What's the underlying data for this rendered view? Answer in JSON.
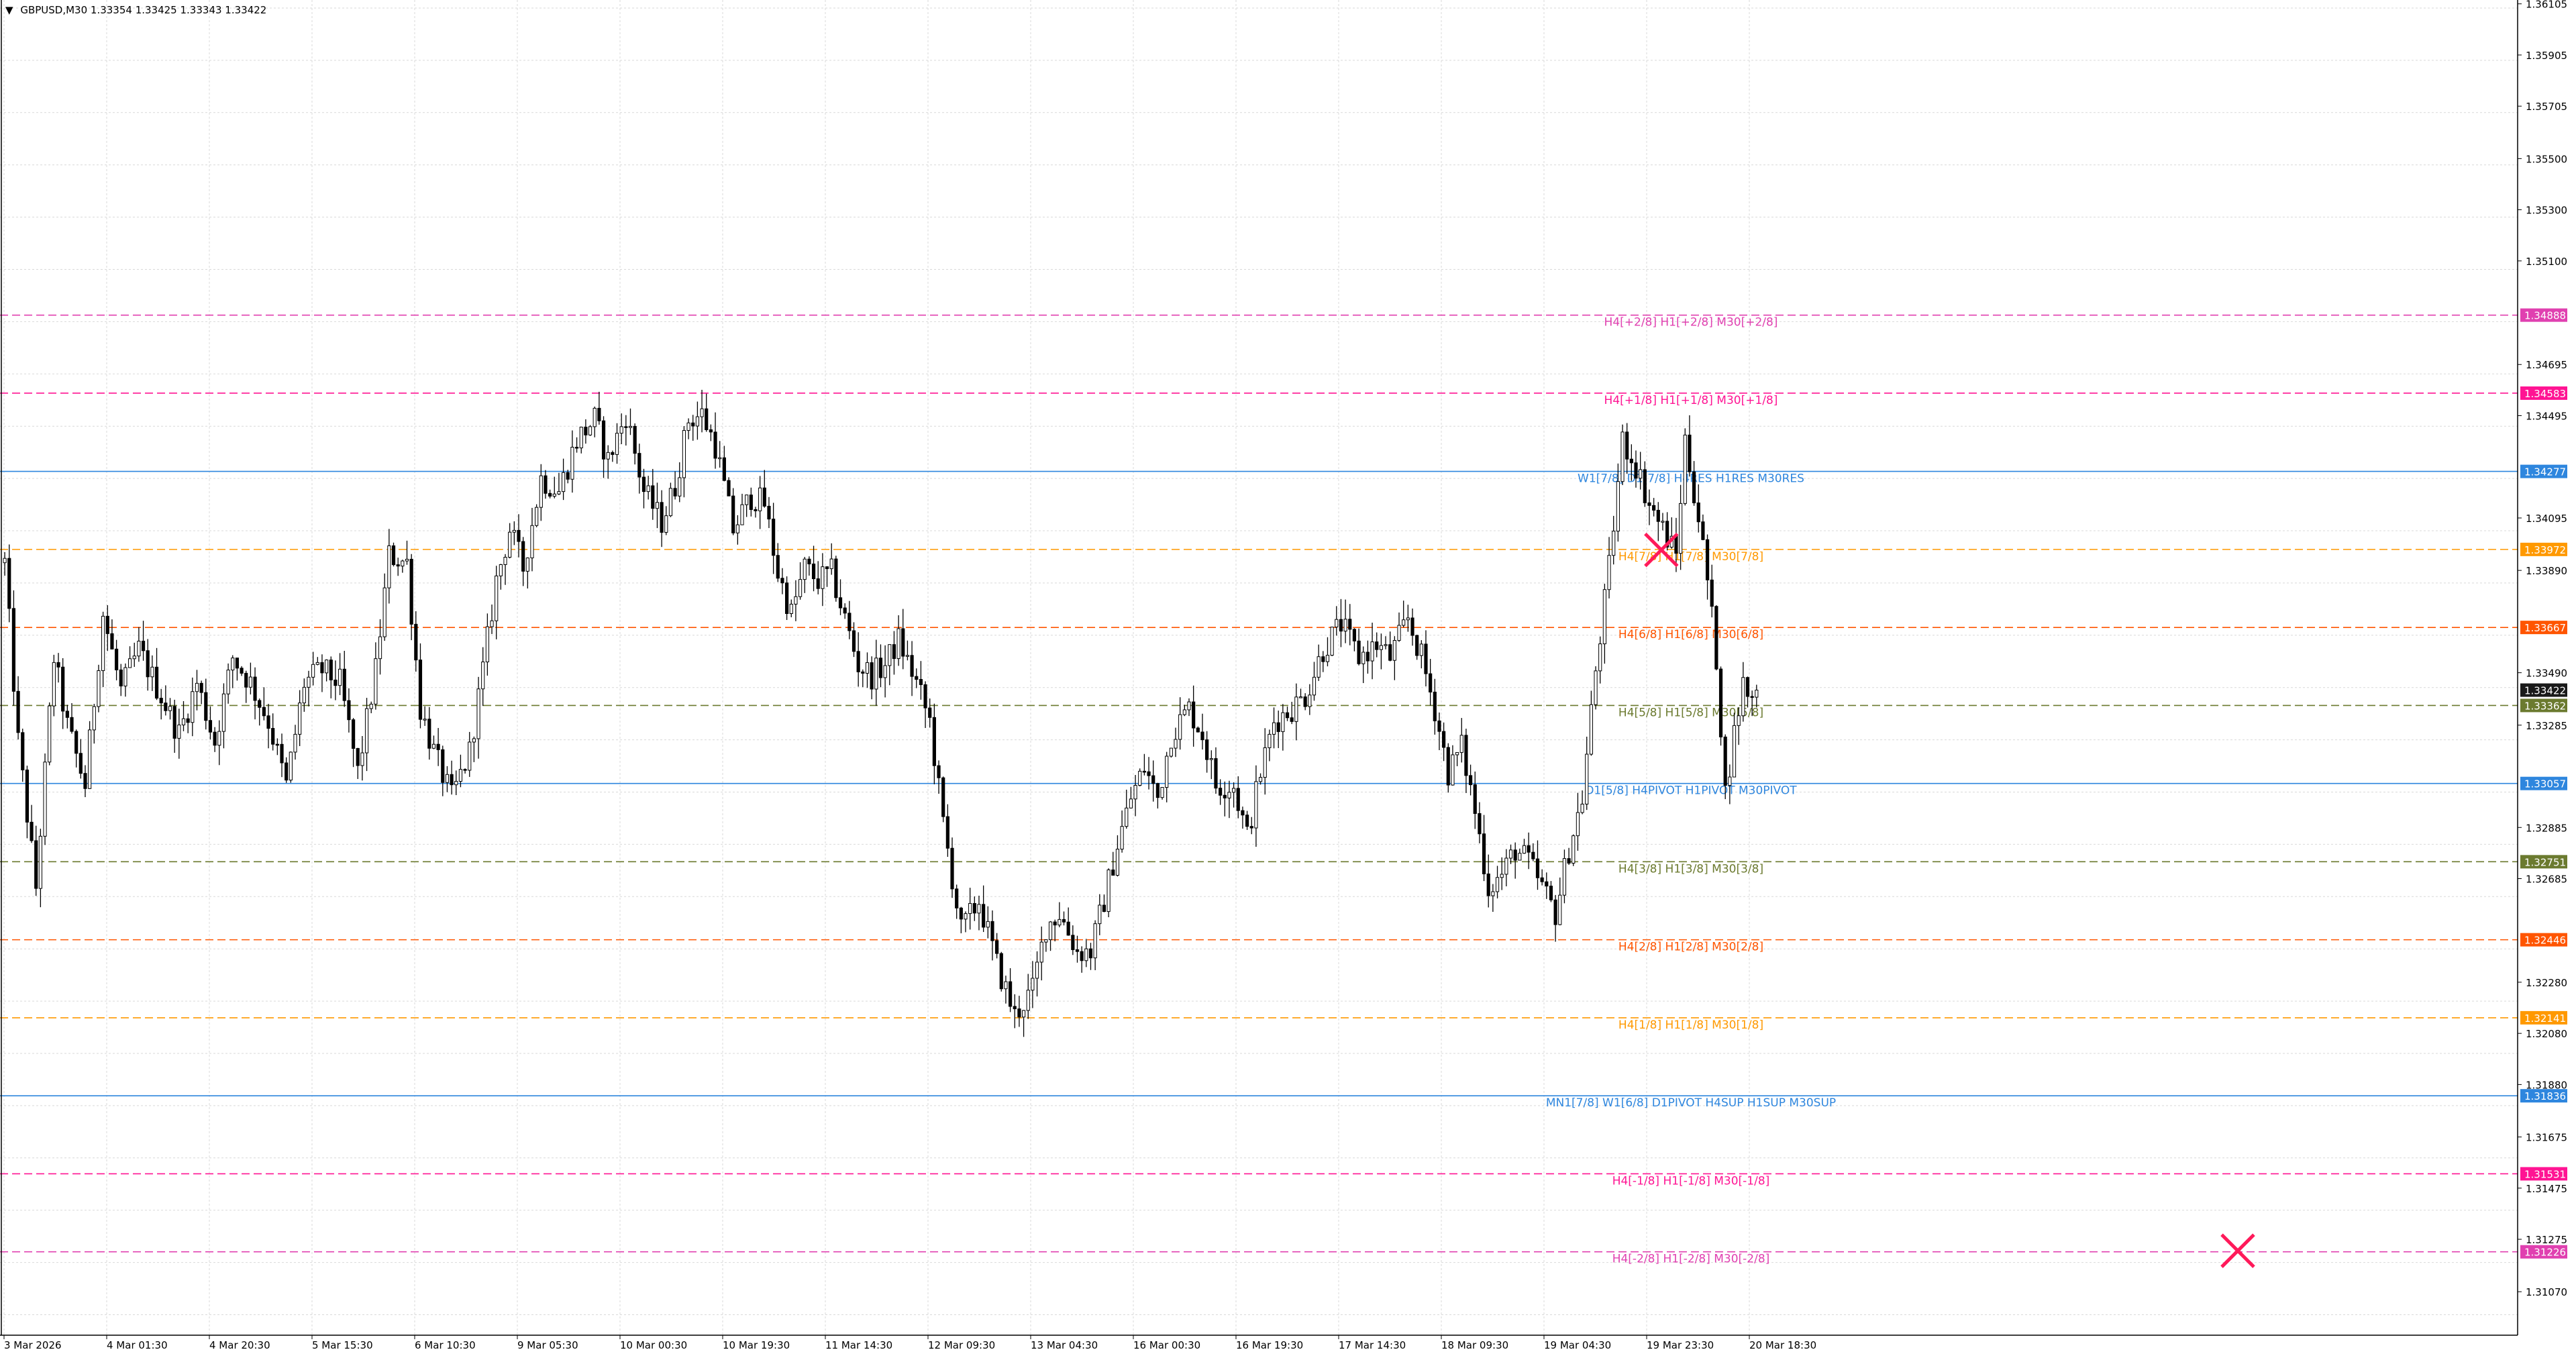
{
  "header": {
    "arrow": "▼",
    "symbol_line": "GBPUSD,M30   1.33354  1.33425  1.33343  1.33422"
  },
  "colors": {
    "background": "#ffffff",
    "grid": "#d9d9d9",
    "candle": "#000000",
    "pink": "#e040b0",
    "magenta": "#ff1493",
    "blue": "#2e86de",
    "orange": "#ff9900",
    "orange_red": "#ff5500",
    "olive": "#6b7a2f",
    "dark": "#1a1a1a",
    "cross": "#ff1a5a"
  },
  "chart_data": {
    "type": "candlestick",
    "title": "GBPUSD,M30",
    "ylim": [
      1.309,
      1.3612
    ],
    "price_axis_ticks": [
      "1.36105",
      "1.35905",
      "1.35705",
      "1.35500",
      "1.35300",
      "1.35100",
      "1.34888",
      "1.34695",
      "1.34583",
      "1.34495",
      "1.34277",
      "1.34095",
      "1.33972",
      "1.33890",
      "1.33667",
      "1.33490",
      "1.33422",
      "1.33362",
      "1.33285",
      "1.33057",
      "1.32885",
      "1.32751",
      "1.32685",
      "1.32446",
      "1.32280",
      "1.32141",
      "1.32080",
      "1.31880",
      "1.31836",
      "1.31675",
      "1.31531",
      "1.31475",
      "1.31275",
      "1.31226",
      "1.31070"
    ],
    "time_axis_labels": [
      "3 Mar 2026",
      "4 Mar 01:30",
      "4 Mar 20:30",
      "5 Mar 15:30",
      "6 Mar 10:30",
      "9 Mar 05:30",
      "10 Mar 00:30",
      "10 Mar 19:30",
      "11 Mar 14:30",
      "12 Mar 09:30",
      "13 Mar 04:30",
      "16 Mar 00:30",
      "16 Mar 19:30",
      "17 Mar 14:30",
      "18 Mar 09:30",
      "19 Mar 04:30",
      "19 Mar 23:30",
      "20 Mar 18:30"
    ],
    "bar_count": 420,
    "close_path": [
      [
        0,
        1.3392
      ],
      [
        6,
        1.3322
      ],
      [
        14,
        1.3265
      ],
      [
        22,
        1.3355
      ],
      [
        28,
        1.3328
      ],
      [
        36,
        1.3305
      ],
      [
        44,
        1.3372
      ],
      [
        52,
        1.3342
      ],
      [
        60,
        1.3358
      ],
      [
        70,
        1.334
      ],
      [
        78,
        1.3325
      ],
      [
        86,
        1.3345
      ],
      [
        94,
        1.3322
      ],
      [
        102,
        1.3355
      ],
      [
        110,
        1.3345
      ],
      [
        118,
        1.333
      ],
      [
        126,
        1.3305
      ],
      [
        134,
        1.3345
      ],
      [
        142,
        1.335
      ],
      [
        150,
        1.3345
      ],
      [
        158,
        1.331
      ],
      [
        166,
        1.335
      ],
      [
        172,
        1.3395
      ],
      [
        180,
        1.3392
      ],
      [
        186,
        1.3335
      ],
      [
        192,
        1.3318
      ],
      [
        200,
        1.33
      ],
      [
        208,
        1.3318
      ],
      [
        214,
        1.335
      ],
      [
        220,
        1.3385
      ],
      [
        226,
        1.3405
      ],
      [
        232,
        1.339
      ],
      [
        240,
        1.3425
      ],
      [
        248,
        1.342
      ],
      [
        256,
        1.344
      ],
      [
        264,
        1.3448
      ],
      [
        270,
        1.3432
      ],
      [
        278,
        1.345
      ],
      [
        286,
        1.342
      ],
      [
        294,
        1.3408
      ],
      [
        300,
        1.3422
      ],
      [
        306,
        1.3448
      ],
      [
        312,
        1.345
      ],
      [
        318,
        1.3438
      ],
      [
        326,
        1.3405
      ],
      [
        334,
        1.3418
      ],
      [
        340,
        1.3415
      ],
      [
        346,
        1.3388
      ],
      [
        352,
        1.3372
      ],
      [
        358,
        1.339
      ],
      [
        364,
        1.3385
      ],
      [
        370,
        1.3388
      ],
      [
        376,
        1.337
      ],
      [
        382,
        1.3352
      ],
      [
        388,
        1.3348
      ],
      [
        394,
        1.3352
      ],
      [
        400,
        1.3362
      ],
      [
        408,
        1.3345
      ],
      [
        414,
        1.333
      ],
      [
        420,
        1.329
      ],
      [
        428,
        1.3248
      ],
      [
        436,
        1.326
      ],
      [
        444,
        1.3235
      ],
      [
        452,
        1.3215
      ],
      [
        460,
        1.3225
      ],
      [
        466,
        1.325
      ],
      [
        472,
        1.3255
      ],
      [
        480,
        1.324
      ],
      [
        486,
        1.324
      ],
      [
        492,
        1.326
      ],
      [
        498,
        1.3282
      ],
      [
        504,
        1.33
      ],
      [
        510,
        1.3312
      ],
      [
        516,
        1.33
      ],
      [
        522,
        1.3325
      ],
      [
        530,
        1.3335
      ],
      [
        536,
        1.3325
      ],
      [
        542,
        1.3305
      ],
      [
        550,
        1.3305
      ],
      [
        556,
        1.3285
      ],
      [
        562,
        1.331
      ],
      [
        568,
        1.333
      ],
      [
        576,
        1.3335
      ],
      [
        582,
        1.334
      ],
      [
        590,
        1.3358
      ],
      [
        598,
        1.3368
      ],
      [
        606,
        1.3355
      ],
      [
        614,
        1.336
      ],
      [
        620,
        1.3355
      ],
      [
        628,
        1.337
      ],
      [
        634,
        1.3355
      ],
      [
        640,
        1.3335
      ],
      [
        646,
        1.331
      ],
      [
        652,
        1.332
      ],
      [
        658,
        1.3295
      ],
      [
        664,
        1.3265
      ],
      [
        670,
        1.327
      ],
      [
        676,
        1.328
      ],
      [
        682,
        1.3275
      ],
      [
        688,
        1.3265
      ],
      [
        694,
        1.3255
      ],
      [
        700,
        1.328
      ],
      [
        706,
        1.33
      ],
      [
        712,
        1.335
      ],
      [
        718,
        1.339
      ],
      [
        724,
        1.344
      ],
      [
        730,
        1.343
      ],
      [
        736,
        1.3415
      ],
      [
        742,
        1.3405
      ],
      [
        748,
        1.3395
      ],
      [
        752,
        1.344
      ],
      [
        758,
        1.341
      ],
      [
        762,
        1.3385
      ],
      [
        766,
        1.3355
      ],
      [
        770,
        1.3302
      ],
      [
        774,
        1.3325
      ],
      [
        778,
        1.3345
      ],
      [
        784,
        1.3335
      ]
    ],
    "levels": [
      {
        "price": 1.34888,
        "label": "H4[+2/8] H1[+2/8] M30[+2/8]",
        "tag": "1.34888",
        "color": "pink",
        "dash": true
      },
      {
        "price": 1.34583,
        "label": "H4[+1/8] H1[+1/8] M30[+1/8]",
        "tag": "1.34583",
        "color": "magenta",
        "dash": true
      },
      {
        "price": 1.34277,
        "label": "W1[7/8] D1[7/8] H4RES H1RES M30RES",
        "tag": "1.34277",
        "color": "blue",
        "dash": false
      },
      {
        "price": 1.33972,
        "label": "H4[7/8] H1[7/8] M30[7/8]",
        "tag": "1.33972",
        "color": "orange",
        "dash": true
      },
      {
        "price": 1.33667,
        "label": "H4[6/8] H1[6/8] M30[6/8]",
        "tag": "1.33667",
        "color": "orange_red",
        "dash": true
      },
      {
        "price": 1.33362,
        "label": "H4[5/8] H1[5/8] M30[5/8]",
        "tag": "1.33362",
        "color": "olive",
        "dash": true
      },
      {
        "price": 1.33057,
        "label": "D1[5/8] H4PIVOT H1PIVOT M30PIVOT",
        "tag": "1.33057",
        "color": "blue",
        "dash": false
      },
      {
        "price": 1.32751,
        "label": "H4[3/8] H1[3/8] M30[3/8]",
        "tag": "1.32751",
        "color": "olive",
        "dash": true
      },
      {
        "price": 1.32446,
        "label": "H4[2/8] H1[2/8] M30[2/8]",
        "tag": "1.32446",
        "color": "orange_red",
        "dash": true
      },
      {
        "price": 1.32141,
        "label": "H4[1/8] H1[1/8] M30[1/8]",
        "tag": "1.32141",
        "color": "orange",
        "dash": true
      },
      {
        "price": 1.31836,
        "label": "MN1[7/8] W1[6/8] D1PIVOT H4SUP H1SUP M30SUP",
        "tag": "1.31836",
        "color": "blue",
        "dash": false
      },
      {
        "price": 1.31531,
        "label": "H4[-1/8] H1[-1/8] M30[-1/8]",
        "tag": "1.31531",
        "color": "magenta",
        "dash": true
      },
      {
        "price": 1.31226,
        "label": "H4[-2/8] H1[-2/8] M30[-2/8]",
        "tag": "1.31226",
        "color": "pink",
        "dash": true
      }
    ],
    "current_price": {
      "price": 1.33422,
      "tag": "1.33422",
      "color": "dark"
    },
    "markers": [
      {
        "type": "cross",
        "bar": 742,
        "price": 1.3397,
        "color": "cross"
      },
      {
        "type": "cross",
        "bar": 1000,
        "price": 1.3123,
        "color": "cross"
      }
    ]
  }
}
